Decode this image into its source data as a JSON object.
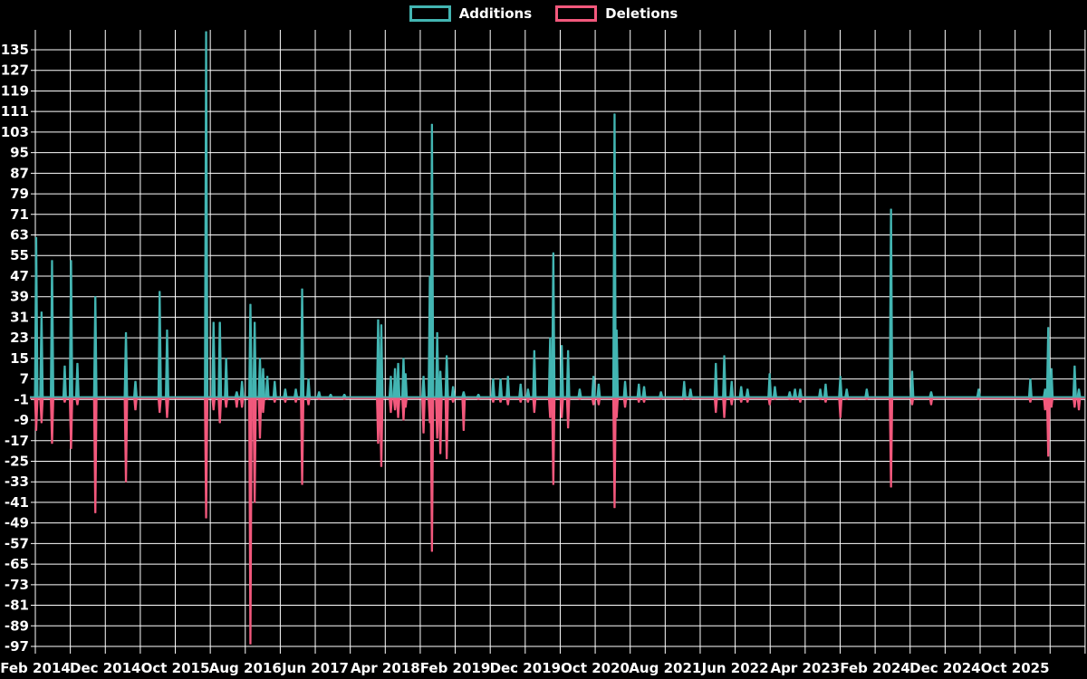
{
  "legend": {
    "additions_label": "Additions",
    "deletions_label": "Deletions"
  },
  "chart_data": {
    "type": "area",
    "title": "",
    "grid": true,
    "legend_position": "top-center",
    "background_color": "#000000",
    "grid_color": "#ffffff",
    "text_color": "#ffffff",
    "series": [
      {
        "name": "Additions",
        "color": "#43b5b2"
      },
      {
        "name": "Deletions",
        "color": "#f2587c"
      }
    ],
    "y_axis": {
      "min": -97,
      "max": 135,
      "step": 8,
      "ticks": [
        135,
        127,
        119,
        111,
        103,
        95,
        87,
        79,
        71,
        63,
        55,
        47,
        39,
        31,
        23,
        15,
        7,
        -1,
        -9,
        -17,
        -25,
        -33,
        -41,
        -49,
        -57,
        -65,
        -73,
        -81,
        -89,
        -97
      ]
    },
    "x_axis": {
      "ticks": [
        "Feb 2014",
        "Dec 2014",
        "Oct 2015",
        "Aug 2016",
        "Jun 2017",
        "Apr 2018",
        "Feb 2019",
        "Dec 2019",
        "Oct 2020",
        "Aug 2021",
        "Jun 2022",
        "Apr 2023",
        "Feb 2024",
        "Dec 2024",
        "Oct 2025"
      ],
      "months_per_tick": 10,
      "minor_gridlines_between_ticks": 1
    },
    "points_format": [
      "x_fraction_of_time_axis",
      "additions",
      "deletions"
    ],
    "points": [
      [
        0.006,
        62,
        -13
      ],
      [
        0.011,
        33,
        -10
      ],
      [
        0.021,
        53,
        -18
      ],
      [
        0.033,
        12,
        -2
      ],
      [
        0.039,
        53,
        -20
      ],
      [
        0.045,
        13,
        -3
      ],
      [
        0.062,
        39,
        -45
      ],
      [
        0.091,
        25,
        -33
      ],
      [
        0.1,
        6,
        -5
      ],
      [
        0.123,
        41,
        -6
      ],
      [
        0.13,
        26,
        -8
      ],
      [
        0.167,
        142,
        -47
      ],
      [
        0.174,
        29,
        -5
      ],
      [
        0.18,
        29,
        -10
      ],
      [
        0.186,
        15,
        -4
      ],
      [
        0.196,
        2,
        -4
      ],
      [
        0.201,
        6,
        -4
      ],
      [
        0.209,
        36,
        -96
      ],
      [
        0.213,
        29,
        -41
      ],
      [
        0.218,
        15,
        -16
      ],
      [
        0.221,
        11,
        -6
      ],
      [
        0.225,
        8,
        -1
      ],
      [
        0.232,
        6,
        -2
      ],
      [
        0.242,
        3,
        -2
      ],
      [
        0.252,
        3,
        -2
      ],
      [
        0.258,
        42,
        -34
      ],
      [
        0.264,
        7,
        -3
      ],
      [
        0.274,
        2,
        -1
      ],
      [
        0.285,
        1,
        0
      ],
      [
        0.298,
        1,
        -1
      ],
      [
        0.33,
        30,
        -18
      ],
      [
        0.333,
        28,
        -27
      ],
      [
        0.342,
        8,
        -6
      ],
      [
        0.346,
        11,
        -5
      ],
      [
        0.349,
        13,
        -8
      ],
      [
        0.354,
        15,
        -9
      ],
      [
        0.356,
        9,
        -4
      ],
      [
        0.373,
        8,
        -14
      ],
      [
        0.379,
        47,
        -10
      ],
      [
        0.381,
        106,
        -60
      ],
      [
        0.386,
        25,
        -16
      ],
      [
        0.389,
        10,
        -22
      ],
      [
        0.395,
        16,
        -24
      ],
      [
        0.401,
        4,
        -2
      ],
      [
        0.411,
        2,
        -13
      ],
      [
        0.425,
        1,
        -1
      ],
      [
        0.439,
        7,
        -2
      ],
      [
        0.446,
        7,
        -2
      ],
      [
        0.453,
        8,
        -3
      ],
      [
        0.465,
        5,
        -2
      ],
      [
        0.472,
        3,
        -2
      ],
      [
        0.478,
        18,
        -6
      ],
      [
        0.493,
        23,
        -8
      ],
      [
        0.496,
        56,
        -34
      ],
      [
        0.504,
        20,
        -8
      ],
      [
        0.51,
        18,
        -12
      ],
      [
        0.521,
        3,
        -1
      ],
      [
        0.534,
        8,
        -3
      ],
      [
        0.539,
        5,
        -3
      ],
      [
        0.554,
        110,
        -43
      ],
      [
        0.556,
        26,
        -8
      ],
      [
        0.564,
        6,
        -4
      ],
      [
        0.577,
        5,
        -2
      ],
      [
        0.582,
        4,
        -2
      ],
      [
        0.598,
        2,
        -1
      ],
      [
        0.62,
        6,
        -1
      ],
      [
        0.626,
        3,
        -1
      ],
      [
        0.65,
        13,
        -6
      ],
      [
        0.658,
        16,
        -8
      ],
      [
        0.665,
        6,
        -3
      ],
      [
        0.674,
        4,
        -2
      ],
      [
        0.68,
        3,
        -2
      ],
      [
        0.701,
        9,
        -3
      ],
      [
        0.706,
        4,
        -1
      ],
      [
        0.72,
        2,
        -1
      ],
      [
        0.725,
        3,
        -1
      ],
      [
        0.73,
        3,
        -2
      ],
      [
        0.749,
        3,
        -1
      ],
      [
        0.754,
        5,
        -2
      ],
      [
        0.768,
        8,
        -8
      ],
      [
        0.774,
        3,
        -1
      ],
      [
        0.793,
        3,
        -1
      ],
      [
        0.816,
        73,
        -35
      ],
      [
        0.836,
        10,
        -3
      ],
      [
        0.854,
        2,
        -3
      ],
      [
        0.899,
        3,
        -1
      ],
      [
        0.948,
        7,
        -2
      ],
      [
        0.962,
        3,
        -5
      ],
      [
        0.965,
        27,
        -23
      ],
      [
        0.968,
        11,
        -4
      ],
      [
        0.99,
        12,
        -4
      ],
      [
        0.994,
        3,
        -5
      ]
    ]
  }
}
